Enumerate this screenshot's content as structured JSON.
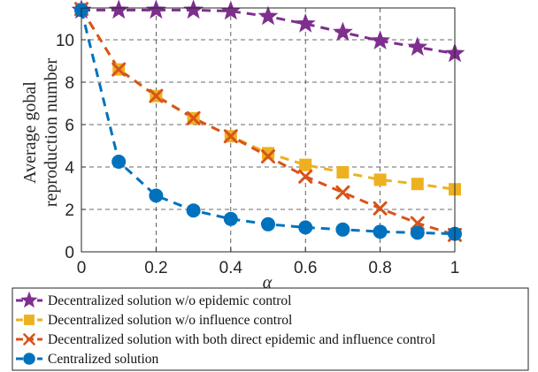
{
  "chart_data": {
    "type": "line",
    "xlabel": "α",
    "ylabel_lines": [
      "Average gobal",
      "reproduction number"
    ],
    "xlim": [
      0,
      1
    ],
    "ylim": [
      0,
      11.5
    ],
    "xticks": [
      0,
      0.2,
      0.4,
      0.6,
      0.8,
      1
    ],
    "xtick_labels": [
      "0",
      "0.2",
      "0.4",
      "0.6",
      "0.8",
      "1"
    ],
    "yticks": [
      0,
      2,
      4,
      6,
      8,
      10
    ],
    "ytick_labels": [
      "0",
      "2",
      "4",
      "6",
      "8",
      "10"
    ],
    "grid": true,
    "legend_position": "below-plot",
    "x": [
      0,
      0.1,
      0.2,
      0.3,
      0.4,
      0.5,
      0.6,
      0.7,
      0.8,
      0.9,
      1.0
    ],
    "series": [
      {
        "name": "Decentralized solution w/o epidemic control",
        "color": "#7e2f8e",
        "marker": "star",
        "values": [
          11.4,
          11.4,
          11.4,
          11.4,
          11.35,
          11.1,
          10.75,
          10.35,
          9.95,
          9.65,
          9.35
        ]
      },
      {
        "name": "Decentralized solution w/o influence control",
        "color": "#edb120",
        "marker": "square",
        "values": [
          11.45,
          8.6,
          7.35,
          6.3,
          5.45,
          4.65,
          4.1,
          3.75,
          3.4,
          3.2,
          2.95
        ]
      },
      {
        "name": "Decentralized solution with both direct epidemic and influence control",
        "color": "#d95319",
        "marker": "x",
        "values": [
          11.45,
          8.6,
          7.35,
          6.3,
          5.45,
          4.5,
          3.55,
          2.8,
          2.05,
          1.35,
          0.8
        ]
      },
      {
        "name": "Centralized solution",
        "color": "#0072bd",
        "marker": "circle",
        "values": [
          11.4,
          4.25,
          2.65,
          1.95,
          1.55,
          1.3,
          1.15,
          1.05,
          0.95,
          0.9,
          0.85
        ]
      }
    ]
  }
}
